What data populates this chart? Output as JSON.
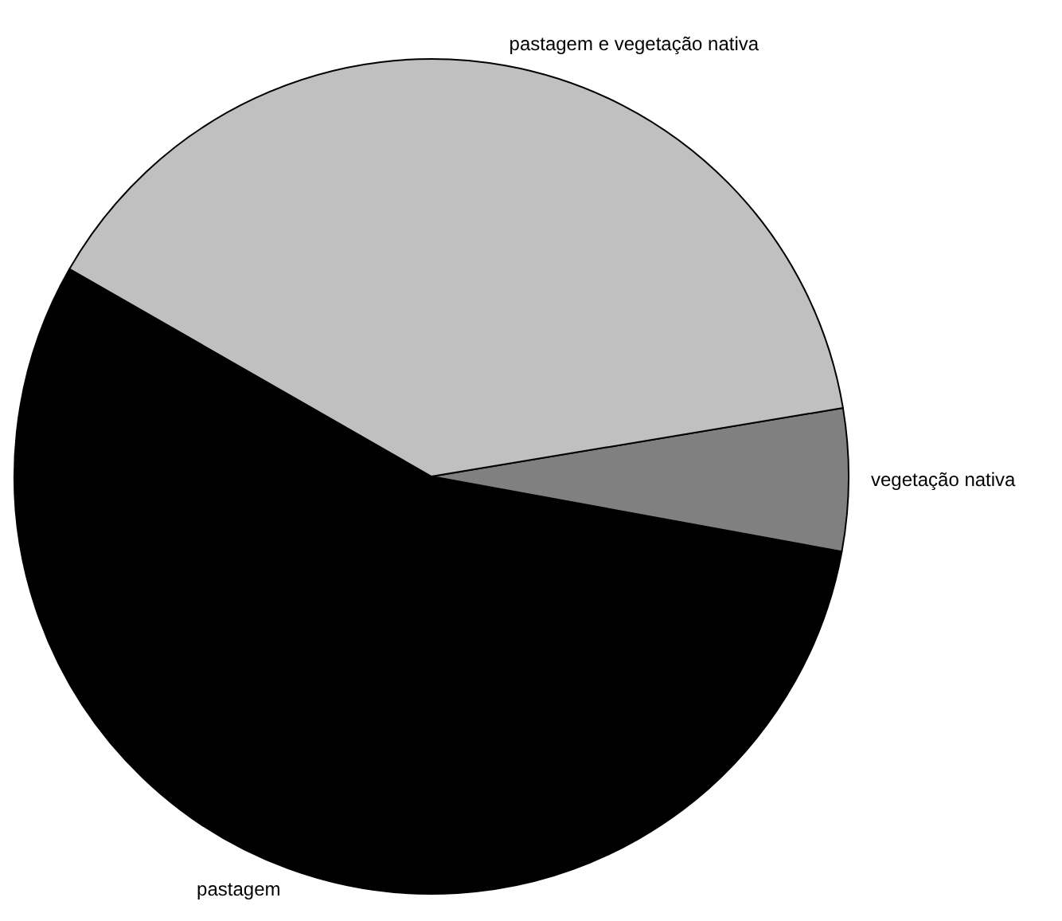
{
  "chart_data": {
    "type": "pie",
    "categories": [
      "pastagem",
      "vegetação nativa",
      "pastagem e vegetação nativa"
    ],
    "values": [
      55.4,
      5.5,
      39.1
    ],
    "colors": [
      "#000000",
      "#808080",
      "#c0c0c0"
    ]
  }
}
